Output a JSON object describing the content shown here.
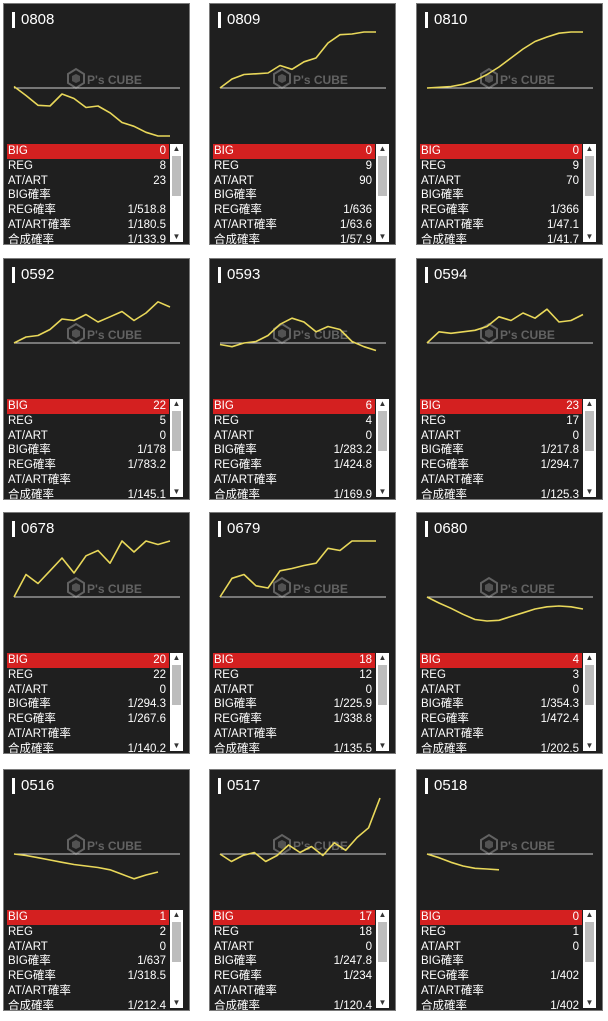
{
  "colors": {
    "line": "#e9d85a",
    "big_bg": "#d42020",
    "panel_bg": "#1f1f1f"
  },
  "logo": {
    "text": "P's CUBE",
    "icon": "cube-logo-icon"
  },
  "machines": [
    {
      "id": "0808",
      "big": "0",
      "reg": "8",
      "at_art": "23",
      "big_rate": "",
      "reg_rate": "1/518.8",
      "at_art_rate": "1/180.5",
      "combined_rate": "1/133.9",
      "trend": [
        0.62,
        0.5,
        0.37,
        0.36,
        0.52,
        0.46,
        0.34,
        0.36,
        0.27,
        0.14,
        0.09,
        0.01,
        -0.06,
        -0.1
      ]
    },
    {
      "id": "0809",
      "big": "0",
      "reg": "9",
      "at_art": "90",
      "big_rate": "",
      "reg_rate": "1/636",
      "at_art_rate": "1/63.6",
      "combined_rate": "1/57.9",
      "trend": [
        0.6,
        0.72,
        0.78,
        0.79,
        0.8,
        0.9,
        0.85,
        0.95,
        1.0,
        1.2,
        1.31,
        1.32,
        1.42,
        1.5
      ]
    },
    {
      "id": "0810",
      "big": "0",
      "reg": "9",
      "at_art": "70",
      "big_rate": "",
      "reg_rate": "1/366",
      "at_art_rate": "1/47.1",
      "combined_rate": "1/41.7",
      "trend": [
        0.6,
        0.61,
        0.62,
        0.65,
        0.7,
        0.78,
        0.88,
        1.0,
        1.12,
        1.22,
        1.28,
        1.33,
        1.42,
        1.55
      ]
    },
    {
      "id": "0592",
      "big": "22",
      "reg": "5",
      "at_art": "0",
      "big_rate": "1/178",
      "reg_rate": "1/783.2",
      "at_art_rate": "",
      "combined_rate": "1/145.1",
      "trend": [
        0.6,
        0.68,
        0.7,
        0.78,
        0.92,
        0.9,
        0.98,
        0.88,
        0.95,
        1.02,
        0.9,
        1.0,
        1.15,
        1.08
      ]
    },
    {
      "id": "0593",
      "big": "6",
      "reg": "4",
      "at_art": "0",
      "big_rate": "1/283.2",
      "reg_rate": "1/424.8",
      "at_art_rate": "",
      "combined_rate": "1/169.9",
      "trend": [
        0.58,
        0.55,
        0.6,
        0.62,
        0.7,
        0.85,
        0.93,
        0.88,
        0.75,
        0.82,
        0.78,
        0.62,
        0.55,
        0.5
      ]
    },
    {
      "id": "0594",
      "big": "23",
      "reg": "17",
      "at_art": "0",
      "big_rate": "1/217.8",
      "reg_rate": "1/294.7",
      "at_art_rate": "",
      "combined_rate": "1/125.3",
      "trend": [
        0.6,
        0.75,
        0.73,
        0.75,
        0.77,
        0.82,
        0.95,
        0.9,
        1.0,
        0.93,
        1.05,
        0.88,
        0.9,
        0.98
      ]
    },
    {
      "id": "0678",
      "big": "20",
      "reg": "22",
      "at_art": "0",
      "big_rate": "1/294.3",
      "reg_rate": "1/267.6",
      "at_art_rate": "",
      "combined_rate": "1/140.2",
      "trend": [
        0.6,
        0.9,
        0.78,
        0.95,
        1.12,
        0.92,
        1.15,
        1.22,
        1.05,
        1.4,
        1.2,
        1.42,
        1.3,
        1.35
      ]
    },
    {
      "id": "0679",
      "big": "18",
      "reg": "12",
      "at_art": "0",
      "big_rate": "1/225.9",
      "reg_rate": "1/338.8",
      "at_art_rate": "",
      "combined_rate": "1/135.5",
      "trend": [
        0.6,
        0.85,
        0.9,
        0.75,
        0.72,
        0.95,
        0.98,
        1.02,
        1.05,
        1.25,
        1.22,
        1.35,
        1.45,
        1.52
      ]
    },
    {
      "id": "0680",
      "big": "4",
      "reg": "3",
      "at_art": "0",
      "big_rate": "1/354.3",
      "reg_rate": "1/472.4",
      "at_art_rate": "",
      "combined_rate": "1/202.5",
      "trend": [
        0.6,
        0.52,
        0.45,
        0.37,
        0.3,
        0.28,
        0.29,
        0.34,
        0.39,
        0.44,
        0.47,
        0.48,
        0.47,
        0.44
      ]
    },
    {
      "id": "0516",
      "big": "1",
      "reg": "2",
      "at_art": "0",
      "big_rate": "1/637",
      "reg_rate": "1/318.5",
      "at_art_rate": "",
      "combined_rate": "1/212.4",
      "trend": [
        0.6,
        0.58,
        0.55,
        0.52,
        0.49,
        0.46,
        0.44,
        0.42,
        0.39,
        0.33,
        0.27,
        0.32,
        0.36
      ]
    },
    {
      "id": "0517",
      "big": "17",
      "reg": "18",
      "at_art": "0",
      "big_rate": "1/247.8",
      "reg_rate": "1/234",
      "at_art_rate": "",
      "combined_rate": "1/120.4",
      "trend": [
        0.6,
        0.5,
        0.58,
        0.62,
        0.5,
        0.58,
        0.72,
        0.62,
        0.7,
        0.58,
        0.75,
        0.65,
        0.82,
        0.95,
        1.38
      ]
    },
    {
      "id": "0518",
      "big": "0",
      "reg": "1",
      "at_art": "0",
      "big_rate": "",
      "reg_rate": "1/402",
      "at_art_rate": "",
      "combined_rate": "1/402",
      "trend": [
        0.6,
        0.55,
        0.49,
        0.44,
        0.41,
        0.4,
        0.39
      ]
    }
  ],
  "labels": {
    "big": "BIG",
    "reg": "REG",
    "at_art": "AT/ART",
    "big_rate": "BIG確率",
    "reg_rate": "REG確率",
    "at_art_rate": "AT/ART確率",
    "combined_rate": "合成確率"
  }
}
